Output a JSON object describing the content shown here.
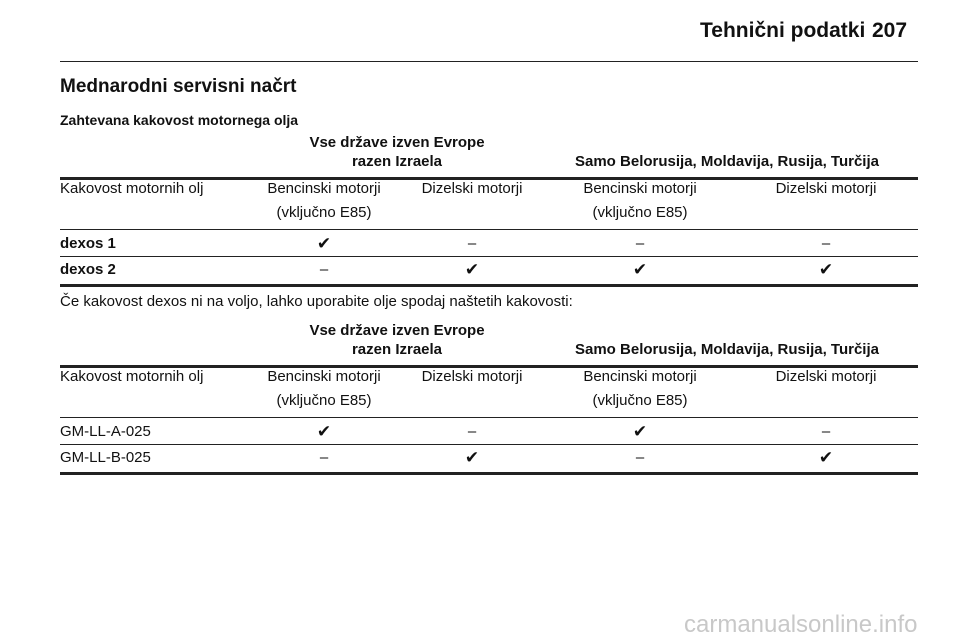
{
  "header": {
    "section": "Tehnični podatki",
    "page": "207"
  },
  "title": "Mednarodni servisni načrt",
  "subtitle": "Zahtevana kakovost motornega olja",
  "tables": [
    {
      "group_headers": [
        [
          "Vse države izven Evrope",
          "razen Izraela"
        ],
        [
          "Samo Belorusija, Moldavija, Rusija, Turčija"
        ]
      ],
      "columns": [
        [
          "Kakovost motornih olj"
        ],
        [
          "Bencinski motorji",
          "(vključno E85)"
        ],
        [
          "Dizelski motorji"
        ],
        [
          "Bencinski motorji",
          "(vključno E85)"
        ],
        [
          "Dizelski motorji"
        ]
      ],
      "bold_labels": true,
      "rows": [
        [
          "dexos 1",
          "✔",
          "–",
          "–",
          "–"
        ],
        [
          "dexos 2",
          "–",
          "✔",
          "✔",
          "✔"
        ]
      ]
    },
    {
      "group_headers": [
        [
          "Vse države izven Evrope",
          "razen Izraela"
        ],
        [
          "Samo Belorusija, Moldavija, Rusija, Turčija"
        ]
      ],
      "columns": [
        [
          "Kakovost motornih olj"
        ],
        [
          "Bencinski motorji",
          "(vključno E85)"
        ],
        [
          "Dizelski motorji"
        ],
        [
          "Bencinski motorji",
          "(vključno E85)"
        ],
        [
          "Dizelski motorji"
        ]
      ],
      "bold_labels": false,
      "rows": [
        [
          "GM-LL-A-025",
          "✔",
          "–",
          "✔",
          "–"
        ],
        [
          "GM-LL-B-025",
          "–",
          "✔",
          "–",
          "✔"
        ]
      ]
    }
  ],
  "note": "Če kakovost dexos ni na voljo, lahko uporabite olje spodaj naštetih kakovosti:",
  "watermark": "carmanualsonline.info"
}
